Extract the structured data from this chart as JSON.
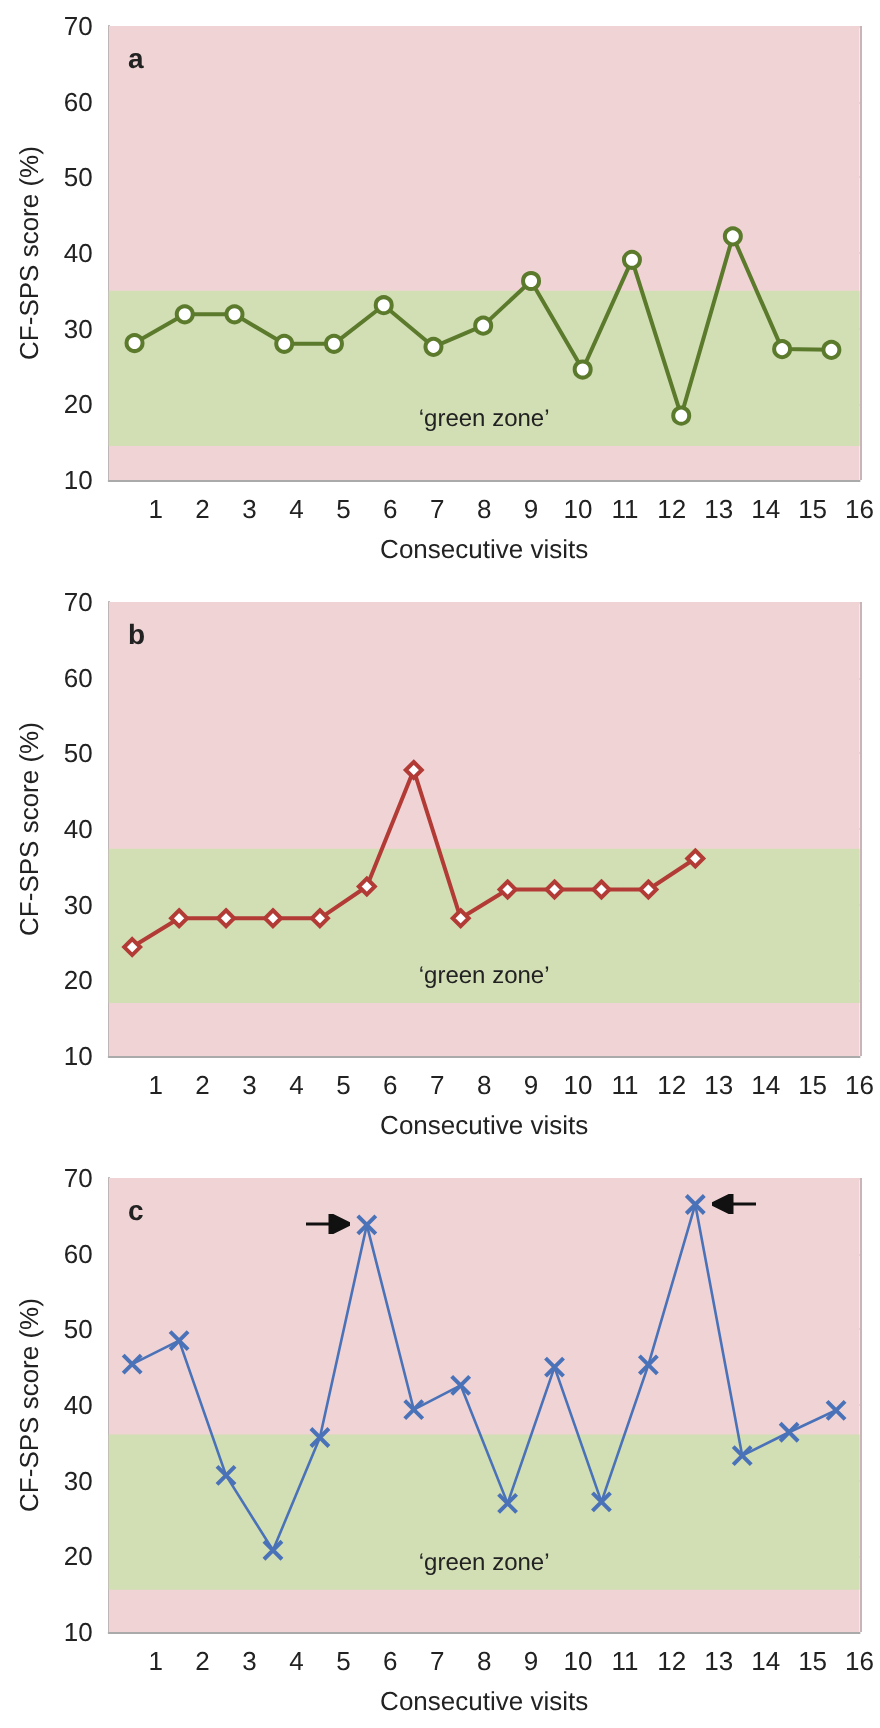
{
  "chart_data": [
    {
      "type": "line",
      "title": "a",
      "xlabel": "Consecutive visits",
      "ylabel": "CF-SPS score (%)",
      "series": [
        {
          "color": "#5b7a2c",
          "x": [
            0.55,
            1.62,
            2.68,
            3.74,
            4.8,
            5.86,
            6.92,
            7.98,
            9.0,
            10.1,
            11.15,
            12.2,
            13.3,
            14.35,
            15.4
          ],
          "values": [
            28.1,
            31.9,
            31.9,
            28,
            28,
            33.1,
            27.6,
            30.4,
            36.3,
            24.6,
            39.1,
            18.5,
            42.2,
            27.3,
            27.2
          ]
        }
      ],
      "xlim": [
        0,
        16
      ],
      "xticks": [
        1,
        2,
        3,
        4,
        5,
        6,
        7,
        8,
        9,
        10,
        11,
        12,
        13,
        14,
        15,
        16
      ],
      "ylim": [
        10,
        70
      ],
      "yticks": [
        10,
        20,
        30,
        40,
        50,
        60,
        70
      ],
      "bands": [
        {
          "axis": "y",
          "from": 10,
          "to": 70,
          "color": "#f0d3d5"
        },
        {
          "axis": "y",
          "from": 14.5,
          "to": 35,
          "label": "‘green zone’",
          "color": "#d2deb4"
        }
      ],
      "grid": true,
      "marker": "circle"
    },
    {
      "type": "line",
      "title": "b",
      "xlabel": "Consecutive visits",
      "ylabel": "CF-SPS score (%)",
      "series": [
        {
          "color": "#b23b36",
          "x": [
            0.5,
            1.5,
            2.5,
            3.5,
            4.5,
            5.5,
            6.5,
            7.5,
            8.5,
            9.5,
            10.5,
            11.5,
            12.5
          ],
          "values": [
            24.4,
            28.2,
            28.2,
            28.2,
            28.2,
            32.4,
            47.8,
            28.2,
            32,
            32,
            32,
            32,
            36.1
          ]
        }
      ],
      "xlim": [
        0,
        16
      ],
      "xticks": [
        1,
        2,
        3,
        4,
        5,
        6,
        7,
        8,
        9,
        10,
        11,
        12,
        13,
        14,
        15,
        16
      ],
      "ylim": [
        10,
        70
      ],
      "yticks": [
        10,
        20,
        30,
        40,
        50,
        60,
        70
      ],
      "bands": [
        {
          "axis": "y",
          "from": 10,
          "to": 70,
          "color": "#f0d3d5"
        },
        {
          "axis": "y",
          "from": 17,
          "to": 37.4,
          "label": "‘green zone’",
          "color": "#d2deb4"
        }
      ],
      "grid": true,
      "marker": "diamond"
    },
    {
      "type": "line",
      "title": "c",
      "xlabel": "Consecutive visits",
      "ylabel": "CF-SPS score (%)",
      "series": [
        {
          "color": "#4a72b8",
          "x": [
            0.5,
            1.5,
            2.5,
            3.5,
            4.5,
            5.5,
            6.5,
            7.5,
            8.5,
            9.5,
            10.5,
            11.5,
            12.5,
            13.5,
            14.5,
            15.5
          ],
          "values": [
            45.4,
            48.5,
            30.7,
            20.8,
            35.7,
            63.8,
            39.4,
            42.6,
            27,
            45,
            27.2,
            45.3,
            66.5,
            33.3,
            36.4,
            39.3
          ]
        }
      ],
      "xlim": [
        0,
        16
      ],
      "xticks": [
        1,
        2,
        3,
        4,
        5,
        6,
        7,
        8,
        9,
        10,
        11,
        12,
        13,
        14,
        15,
        16
      ],
      "ylim": [
        10,
        70
      ],
      "yticks": [
        10,
        20,
        30,
        40,
        50,
        60,
        70
      ],
      "bands": [
        {
          "axis": "y",
          "from": 10,
          "to": 70,
          "color": "#f0d3d5"
        },
        {
          "axis": "y",
          "from": 15.6,
          "to": 36.1,
          "label": "‘green zone’",
          "color": "#d2deb4"
        }
      ],
      "grid": true,
      "marker": "cross"
    }
  ]
}
